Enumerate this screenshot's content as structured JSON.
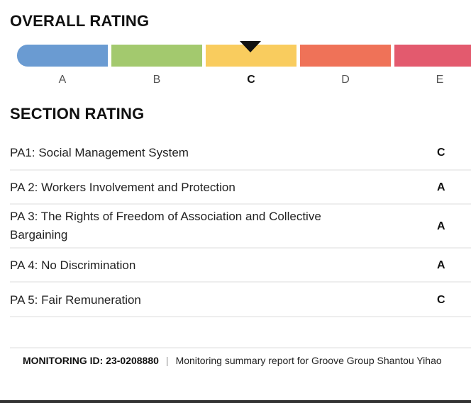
{
  "overall": {
    "heading": "OVERALL RATING",
    "selected": "C",
    "segments": [
      {
        "label": "A",
        "color": "#6a9bd2"
      },
      {
        "label": "B",
        "color": "#a3c96e"
      },
      {
        "label": "C",
        "color": "#f9cc5e"
      },
      {
        "label": "D",
        "color": "#ef7258"
      },
      {
        "label": "E",
        "color": "#e35a6e"
      }
    ]
  },
  "section": {
    "heading": "SECTION RATING",
    "rows": [
      {
        "label": "PA1: Social Management System",
        "grade": "C"
      },
      {
        "label": "PA 2: Workers Involvement and Protection",
        "grade": "A"
      },
      {
        "label": "PA 3: The Rights of Freedom of Association and Collective Bargaining",
        "grade": "A"
      },
      {
        "label": "PA 4: No Discrimination",
        "grade": "A"
      },
      {
        "label": "PA 5: Fair Remuneration",
        "grade": "C"
      }
    ]
  },
  "footer": {
    "monitoring_label": "MONITORING ID: 23-0208880",
    "separator": "|",
    "summary": "Monitoring summary report for Groove Group Shantou Yihao"
  }
}
